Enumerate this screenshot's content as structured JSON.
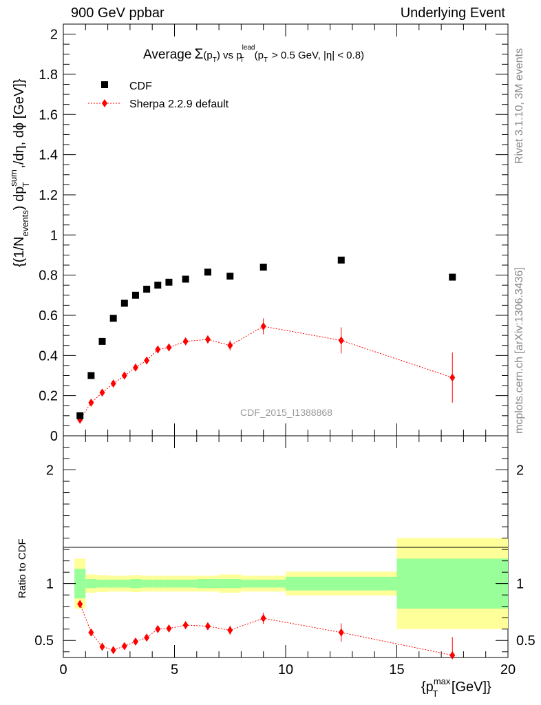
{
  "header": {
    "left": "900 GeV ppbar",
    "right": "Underlying Event"
  },
  "side_labels": {
    "rivet": "Rivet 3.1.10,  3M events",
    "mcplots": "mcplots.cern.ch [arXiv:1306.3436]"
  },
  "chart_data": {
    "type": "scatter",
    "title_parts": {
      "average": "Average",
      "sigma": "Σ",
      "pt_open": "(p",
      "T": "T",
      "close": ")",
      "vs": " vs p",
      "lead": "lead",
      "cut": "(p",
      "cut_rest": "> 0.5 GeV, |η| < 0.8)"
    },
    "watermark": "CDF_2015_I1388868",
    "ylabel_parts": {
      "a": "{(1/N",
      "events": "events",
      "b": ") dp",
      "sum": "sum",
      "T": "T",
      "c": " ,/dη, dϕ [GeV]}"
    },
    "xlabel_parts": {
      "a": "{p",
      "max": "max",
      "T": "T",
      "b": " [GeV]}"
    },
    "ratio_ylabel": "Ratio to CDF",
    "xlim": [
      0,
      20
    ],
    "ylim_main": [
      0,
      2.05
    ],
    "ylim_ratio": [
      0.35,
      2.3
    ],
    "xticks": [
      "0",
      "5",
      "10",
      "15",
      "20"
    ],
    "yticks_main": [
      "0",
      "0.2",
      "0.4",
      "0.6",
      "0.8",
      "1",
      "1.2",
      "1.4",
      "1.6",
      "1.8",
      "2"
    ],
    "yticks_ratio": [
      "0.5",
      "1",
      "2"
    ],
    "legend": {
      "placement": "top-left",
      "cdf": "CDF",
      "sherpa": "Sherpa 2.2.9 default"
    },
    "colors": {
      "cdf": "#000000",
      "sherpa": "#ff0000",
      "band_inner": "#99ff99",
      "band_outer": "#ffff99"
    },
    "x": [
      0.75,
      1.25,
      1.75,
      2.25,
      2.75,
      3.25,
      3.75,
      4.25,
      4.75,
      5.5,
      6.5,
      7.5,
      9.0,
      12.5,
      17.5
    ],
    "bin_edges": [
      0.5,
      1.0,
      1.5,
      2.0,
      2.5,
      3.0,
      3.5,
      4.0,
      4.5,
      5.0,
      6.0,
      7.0,
      8.0,
      10.0,
      15.0,
      20.0
    ],
    "series": [
      {
        "name": "CDF",
        "values": [
          0.1,
          0.3,
          0.47,
          0.585,
          0.66,
          0.7,
          0.73,
          0.75,
          0.765,
          0.78,
          0.815,
          0.795,
          0.84,
          0.875,
          0.79
        ]
      },
      {
        "name": "Sherpa 2.2.9 default",
        "values": [
          0.08,
          0.165,
          0.215,
          0.26,
          0.3,
          0.34,
          0.375,
          0.43,
          0.44,
          0.47,
          0.48,
          0.45,
          0.545,
          0.475,
          0.29
        ],
        "errors": [
          0.01,
          0.01,
          0.01,
          0.01,
          0.012,
          0.012,
          0.012,
          0.015,
          0.015,
          0.015,
          0.02,
          0.025,
          0.04,
          0.065,
          0.125
        ]
      }
    ],
    "ratio": {
      "values": [
        0.82,
        0.57,
        0.445,
        0.415,
        0.45,
        0.49,
        0.525,
        0.6,
        0.605,
        0.635,
        0.625,
        0.59,
        0.695,
        0.57,
        0.37
      ],
      "errors": [
        0.015,
        0.01,
        0.01,
        0.01,
        0.012,
        0.012,
        0.012,
        0.015,
        0.015,
        0.02,
        0.03,
        0.04,
        0.05,
        0.08,
        0.16
      ],
      "band_inner": [
        0.13,
        0.04,
        0.035,
        0.035,
        0.035,
        0.04,
        0.035,
        0.035,
        0.035,
        0.035,
        0.04,
        0.04,
        0.035,
        0.06,
        0.22
      ],
      "band_outer": [
        0.22,
        0.08,
        0.075,
        0.07,
        0.07,
        0.075,
        0.07,
        0.07,
        0.07,
        0.07,
        0.07,
        0.08,
        0.07,
        0.105,
        0.4
      ]
    }
  }
}
